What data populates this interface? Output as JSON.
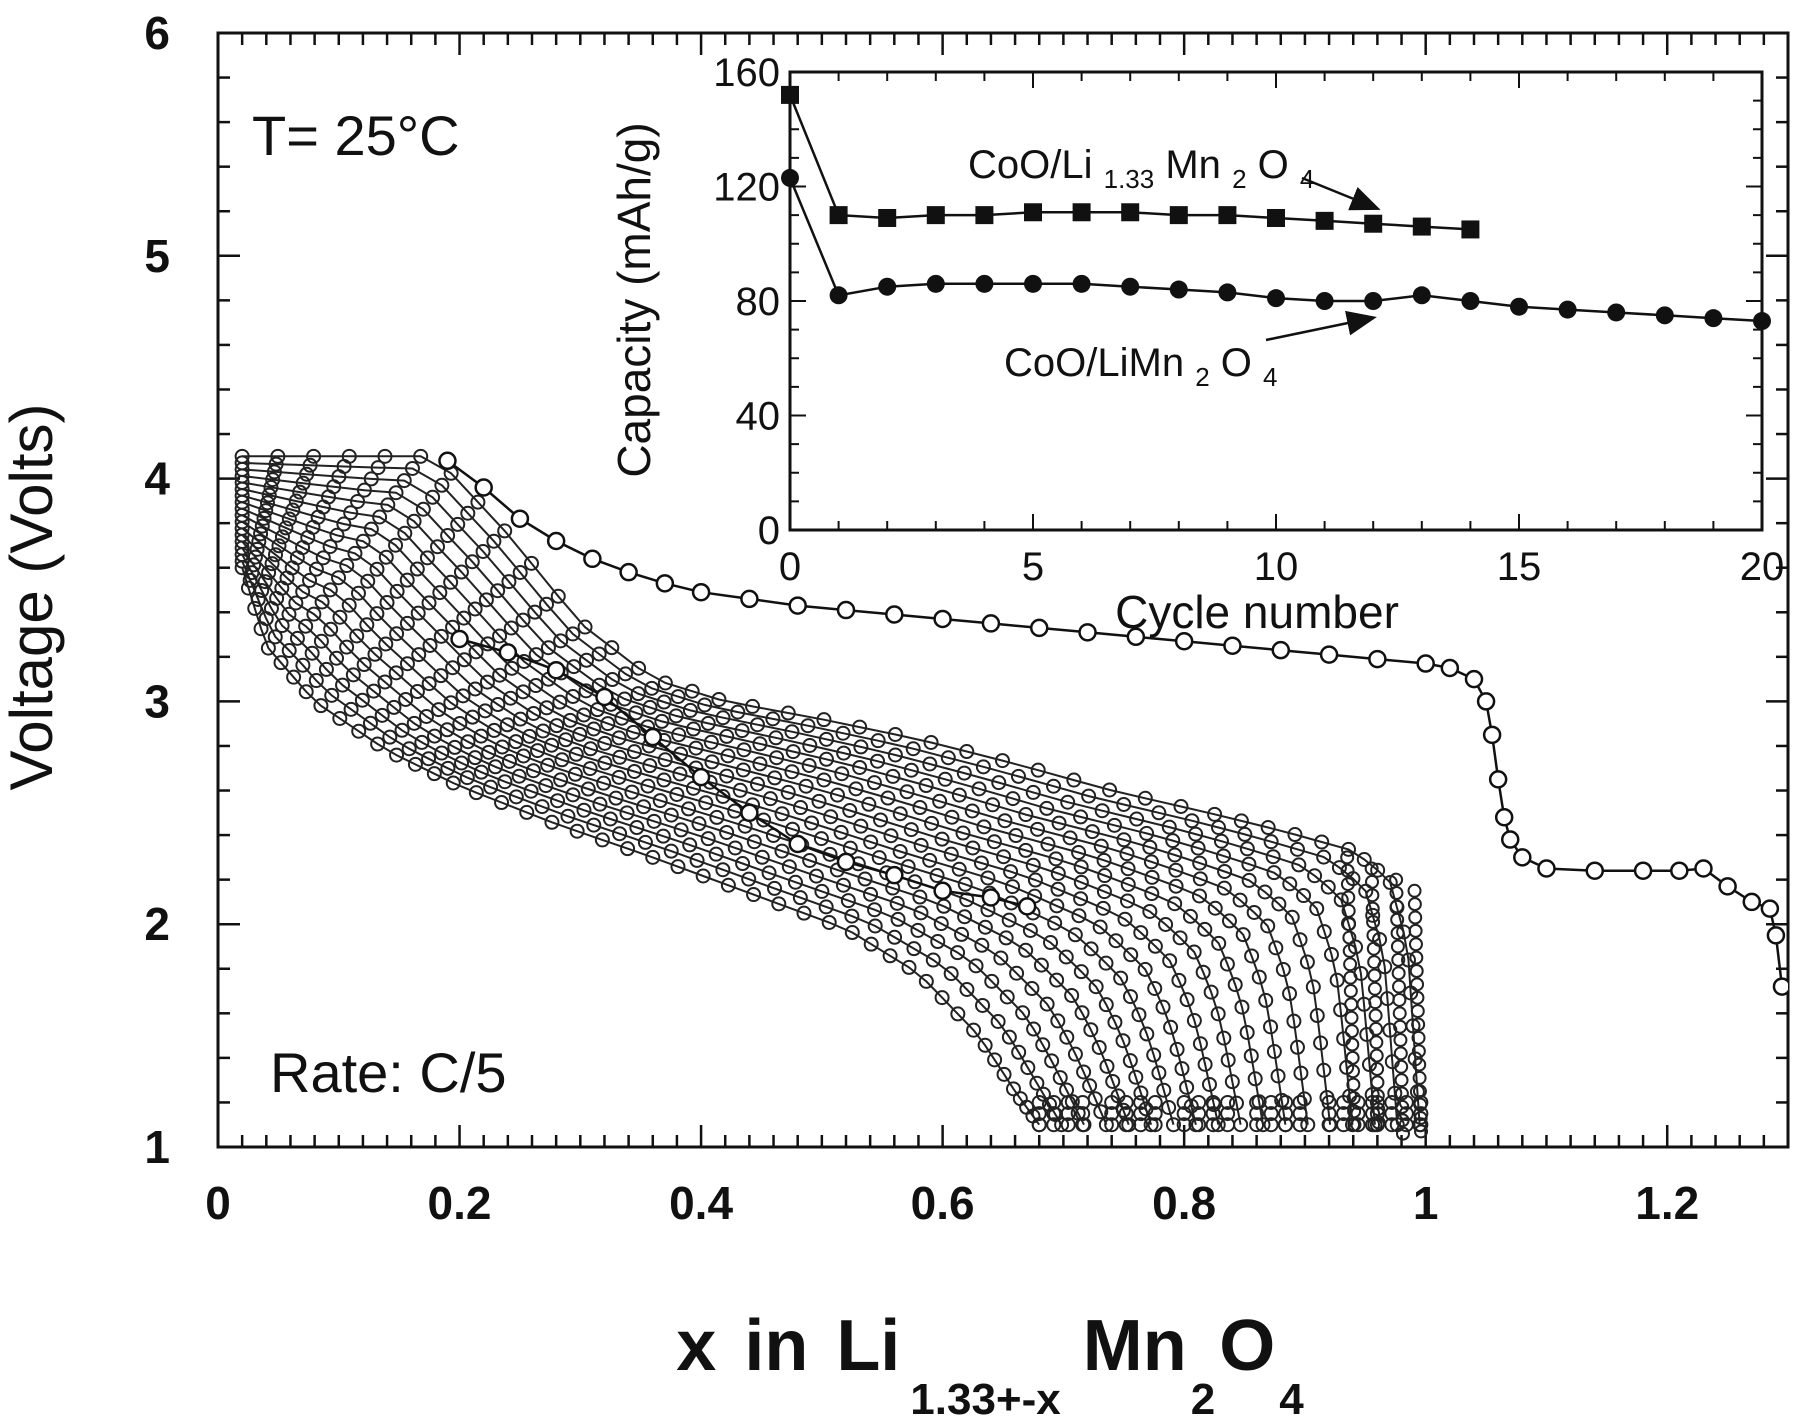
{
  "chart_data": [
    {
      "type": "scatter",
      "title": "",
      "ylabel": "Voltage (Volts)",
      "xlabel": {
        "parts": [
          "x",
          "in",
          "Li",
          "1.33+-x",
          "Mn",
          "2",
          "O",
          "4"
        ]
      },
      "xlim": [
        0,
        1.3
      ],
      "ylim": [
        1,
        6
      ],
      "xticks": [
        0,
        0.2,
        0.4,
        0.6,
        0.8,
        1,
        1.2
      ],
      "xtick_labels": [
        "0",
        "0.2",
        "0.4",
        "0.6",
        "0.8",
        "1",
        "1.2"
      ],
      "yticks": [
        1,
        2,
        3,
        4,
        5,
        6
      ],
      "ytick_labels": [
        "1",
        "2",
        "3",
        "4",
        "5",
        "6"
      ],
      "annotations": [
        "T= 25°C",
        "Rate: C/5"
      ],
      "series": [
        {
          "role": "first-discharge",
          "points": [
            [
              0.19,
              4.08
            ],
            [
              0.22,
              3.96
            ],
            [
              0.25,
              3.82
            ],
            [
              0.28,
              3.72
            ],
            [
              0.31,
              3.64
            ],
            [
              0.34,
              3.58
            ],
            [
              0.37,
              3.53
            ],
            [
              0.4,
              3.49
            ],
            [
              0.44,
              3.46
            ],
            [
              0.48,
              3.43
            ],
            [
              0.52,
              3.41
            ],
            [
              0.56,
              3.39
            ],
            [
              0.6,
              3.37
            ],
            [
              0.64,
              3.35
            ],
            [
              0.68,
              3.33
            ],
            [
              0.72,
              3.31
            ],
            [
              0.76,
              3.29
            ],
            [
              0.8,
              3.27
            ],
            [
              0.84,
              3.25
            ],
            [
              0.88,
              3.23
            ],
            [
              0.92,
              3.21
            ],
            [
              0.96,
              3.19
            ],
            [
              1.0,
              3.17
            ],
            [
              1.02,
              3.15
            ],
            [
              1.04,
              3.1
            ],
            [
              1.05,
              3.0
            ],
            [
              1.055,
              2.85
            ],
            [
              1.06,
              2.65
            ],
            [
              1.065,
              2.48
            ],
            [
              1.07,
              2.38
            ],
            [
              1.08,
              2.3
            ],
            [
              1.1,
              2.25
            ],
            [
              1.14,
              2.24
            ],
            [
              1.18,
              2.24
            ],
            [
              1.21,
              2.24
            ],
            [
              1.23,
              2.25
            ],
            [
              1.25,
              2.17
            ],
            [
              1.27,
              2.1
            ],
            [
              1.285,
              2.07
            ],
            [
              1.29,
              1.95
            ],
            [
              1.295,
              1.72
            ]
          ]
        },
        {
          "role": "first-charge",
          "points": [
            [
              0.67,
              2.08
            ],
            [
              0.64,
              2.12
            ],
            [
              0.6,
              2.15
            ],
            [
              0.56,
              2.22
            ],
            [
              0.52,
              2.28
            ],
            [
              0.48,
              2.36
            ],
            [
              0.44,
              2.5
            ],
            [
              0.4,
              2.66
            ],
            [
              0.36,
              2.84
            ],
            [
              0.32,
              3.02
            ],
            [
              0.28,
              3.14
            ],
            [
              0.24,
              3.22
            ],
            [
              0.2,
              3.28
            ]
          ]
        },
        {
          "role": "discharge-envelope-upper",
          "points": [
            [
              0.02,
              4.1
            ],
            [
              0.1,
              4.1
            ],
            [
              0.18,
              4.1
            ],
            [
              0.24,
              3.75
            ],
            [
              0.3,
              3.35
            ],
            [
              0.36,
              3.1
            ],
            [
              0.42,
              3.0
            ],
            [
              0.5,
              2.92
            ],
            [
              0.58,
              2.83
            ],
            [
              0.66,
              2.72
            ],
            [
              0.74,
              2.6
            ],
            [
              0.82,
              2.5
            ],
            [
              0.88,
              2.42
            ],
            [
              0.94,
              2.33
            ],
            [
              0.97,
              2.2
            ],
            [
              0.985,
              1.9
            ],
            [
              0.99,
              1.5
            ],
            [
              0.995,
              1.1
            ]
          ]
        },
        {
          "role": "discharge-envelope-lower",
          "points": [
            [
              0.02,
              3.6
            ],
            [
              0.04,
              3.25
            ],
            [
              0.08,
              3.0
            ],
            [
              0.14,
              2.78
            ],
            [
              0.2,
              2.62
            ],
            [
              0.28,
              2.45
            ],
            [
              0.36,
              2.3
            ],
            [
              0.44,
              2.14
            ],
            [
              0.52,
              1.98
            ],
            [
              0.58,
              1.78
            ],
            [
              0.63,
              1.5
            ],
            [
              0.66,
              1.25
            ],
            [
              0.68,
              1.1
            ]
          ]
        },
        {
          "role": "charge-envelope",
          "points": [
            [
              0.68,
              1.1
            ],
            [
              0.74,
              1.1
            ],
            [
              0.8,
              1.1
            ],
            [
              0.86,
              1.1
            ],
            [
              0.92,
              1.1
            ],
            [
              0.96,
              1.1
            ]
          ]
        }
      ]
    },
    {
      "type": "line",
      "title": "",
      "ylabel": "Capacity (mAh/g)",
      "xlabel": "Cycle number",
      "xlim": [
        0,
        20
      ],
      "ylim": [
        0,
        160
      ],
      "xticks": [
        0,
        5,
        10,
        15,
        20
      ],
      "xtick_labels": [
        "0",
        "5",
        "10",
        "15",
        "20"
      ],
      "yticks": [
        0,
        40,
        80,
        120,
        160
      ],
      "ytick_labels": [
        "0",
        "40",
        "80",
        "120",
        "160"
      ],
      "series": [
        {
          "name_parts": [
            "CoO/Li",
            "1.33",
            "Mn",
            "2",
            "O",
            "4"
          ],
          "marker": "square",
          "x": [
            0,
            1,
            2,
            3,
            4,
            5,
            6,
            7,
            8,
            9,
            10,
            11,
            12,
            13,
            14
          ],
          "values": [
            152,
            110,
            109,
            110,
            110,
            111,
            111,
            111,
            110,
            110,
            109,
            108,
            107,
            106,
            105
          ]
        },
        {
          "name_parts": [
            "CoO/LiMn",
            "2",
            "O",
            "4"
          ],
          "marker": "circle",
          "x": [
            0,
            1,
            2,
            3,
            4,
            5,
            6,
            7,
            8,
            9,
            10,
            11,
            12,
            13,
            14,
            15,
            16,
            17,
            18,
            19,
            20
          ],
          "values": [
            123,
            82,
            85,
            86,
            86,
            86,
            86,
            85,
            84,
            83,
            81,
            80,
            80,
            82,
            80,
            78,
            77,
            76,
            75,
            74,
            73
          ]
        }
      ]
    }
  ]
}
